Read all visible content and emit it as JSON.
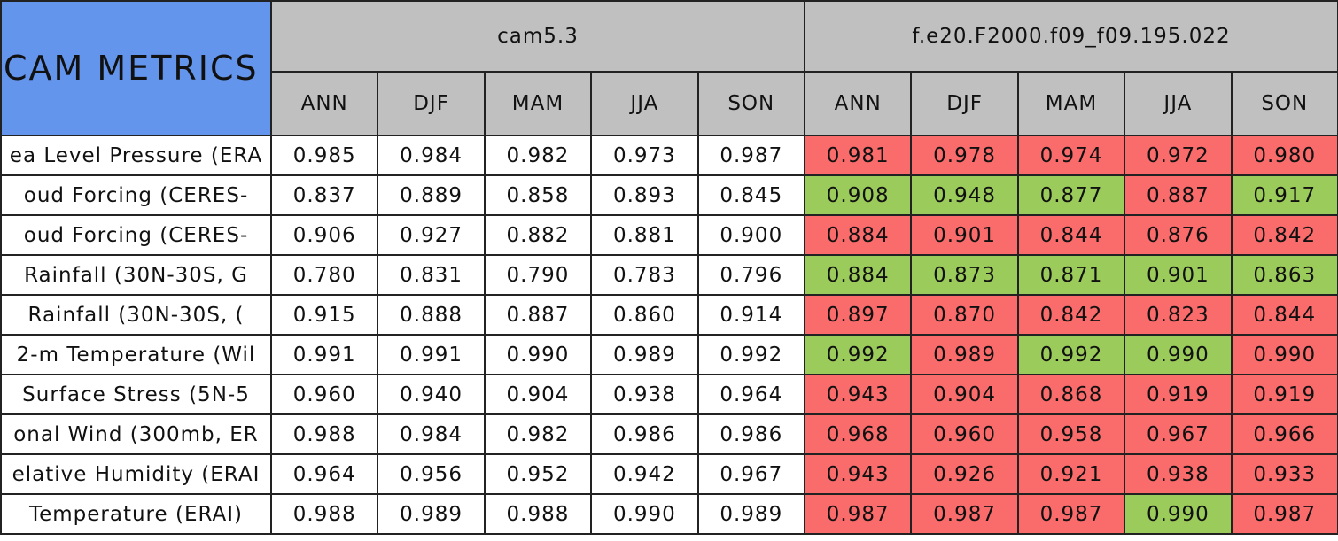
{
  "header": {
    "title": "CAM METRICS",
    "groups": [
      {
        "name": "cam5.3",
        "seasons": [
          "ANN",
          "DJF",
          "MAM",
          "JJA",
          "SON"
        ]
      },
      {
        "name": "f.e20.F2000.f09_f09.195.022",
        "seasons": [
          "ANN",
          "DJF",
          "MAM",
          "JJA",
          "SON"
        ]
      }
    ]
  },
  "table": {
    "rows": [
      {
        "label": "ea Level Pressure (ERA",
        "values": [
          "0.985",
          "0.984",
          "0.982",
          "0.973",
          "0.987",
          "0.981",
          "0.978",
          "0.974",
          "0.972",
          "0.980"
        ],
        "colors": [
          "#ffffff",
          "#ffffff",
          "#ffffff",
          "#ffffff",
          "#ffffff",
          "#fa6b6b",
          "#fa6b6b",
          "#fa6b6b",
          "#fa6b6b",
          "#fa6b6b"
        ]
      },
      {
        "label": "oud Forcing (CERES-",
        "values": [
          "0.837",
          "0.889",
          "0.858",
          "0.893",
          "0.845",
          "0.908",
          "0.948",
          "0.877",
          "0.887",
          "0.917"
        ],
        "colors": [
          "#ffffff",
          "#ffffff",
          "#ffffff",
          "#ffffff",
          "#ffffff",
          "#9bcb5a",
          "#9bcb5a",
          "#9bcb5a",
          "#fa6b6b",
          "#9bcb5a"
        ]
      },
      {
        "label": "oud Forcing (CERES-",
        "values": [
          "0.906",
          "0.927",
          "0.882",
          "0.881",
          "0.900",
          "0.884",
          "0.901",
          "0.844",
          "0.876",
          "0.842"
        ],
        "colors": [
          "#ffffff",
          "#ffffff",
          "#ffffff",
          "#ffffff",
          "#ffffff",
          "#fa6b6b",
          "#fa6b6b",
          "#fa6b6b",
          "#fa6b6b",
          "#fa6b6b"
        ]
      },
      {
        "label": "Rainfall (30N-30S, G",
        "values": [
          "0.780",
          "0.831",
          "0.790",
          "0.783",
          "0.796",
          "0.884",
          "0.873",
          "0.871",
          "0.901",
          "0.863"
        ],
        "colors": [
          "#ffffff",
          "#ffffff",
          "#ffffff",
          "#ffffff",
          "#ffffff",
          "#9bcb5a",
          "#9bcb5a",
          "#9bcb5a",
          "#9bcb5a",
          "#9bcb5a"
        ]
      },
      {
        "label": "Rainfall (30N-30S, (",
        "values": [
          "0.915",
          "0.888",
          "0.887",
          "0.860",
          "0.914",
          "0.897",
          "0.870",
          "0.842",
          "0.823",
          "0.844"
        ],
        "colors": [
          "#ffffff",
          "#ffffff",
          "#ffffff",
          "#ffffff",
          "#ffffff",
          "#fa6b6b",
          "#fa6b6b",
          "#fa6b6b",
          "#fa6b6b",
          "#fa6b6b"
        ]
      },
      {
        "label": "2-m Temperature (Wil",
        "values": [
          "0.991",
          "0.991",
          "0.990",
          "0.989",
          "0.992",
          "0.992",
          "0.989",
          "0.992",
          "0.990",
          "0.990"
        ],
        "colors": [
          "#ffffff",
          "#ffffff",
          "#ffffff",
          "#ffffff",
          "#ffffff",
          "#9bcb5a",
          "#fa6b6b",
          "#9bcb5a",
          "#9bcb5a",
          "#fa6b6b"
        ]
      },
      {
        "label": "Surface Stress (5N-5",
        "values": [
          "0.960",
          "0.940",
          "0.904",
          "0.938",
          "0.964",
          "0.943",
          "0.904",
          "0.868",
          "0.919",
          "0.919"
        ],
        "colors": [
          "#ffffff",
          "#ffffff",
          "#ffffff",
          "#ffffff",
          "#ffffff",
          "#fa6b6b",
          "#fa6b6b",
          "#fa6b6b",
          "#fa6b6b",
          "#fa6b6b"
        ]
      },
      {
        "label": "onal Wind (300mb, ER",
        "values": [
          "0.988",
          "0.984",
          "0.982",
          "0.986",
          "0.986",
          "0.968",
          "0.960",
          "0.958",
          "0.967",
          "0.966"
        ],
        "colors": [
          "#ffffff",
          "#ffffff",
          "#ffffff",
          "#ffffff",
          "#ffffff",
          "#fa6b6b",
          "#fa6b6b",
          "#fa6b6b",
          "#fa6b6b",
          "#fa6b6b"
        ]
      },
      {
        "label": "elative Humidity (ERAI",
        "values": [
          "0.964",
          "0.956",
          "0.952",
          "0.942",
          "0.967",
          "0.943",
          "0.926",
          "0.921",
          "0.938",
          "0.933"
        ],
        "colors": [
          "#ffffff",
          "#ffffff",
          "#ffffff",
          "#ffffff",
          "#ffffff",
          "#fa6b6b",
          "#fa6b6b",
          "#fa6b6b",
          "#fa6b6b",
          "#fa6b6b"
        ]
      },
      {
        "label": "Temperature (ERAI)",
        "values": [
          "0.988",
          "0.989",
          "0.988",
          "0.990",
          "0.989",
          "0.987",
          "0.987",
          "0.987",
          "0.990",
          "0.987"
        ],
        "colors": [
          "#ffffff",
          "#ffffff",
          "#ffffff",
          "#ffffff",
          "#ffffff",
          "#fa6b6b",
          "#fa6b6b",
          "#fa6b6b",
          "#9bcb5a",
          "#fa6b6b"
        ]
      }
    ]
  }
}
